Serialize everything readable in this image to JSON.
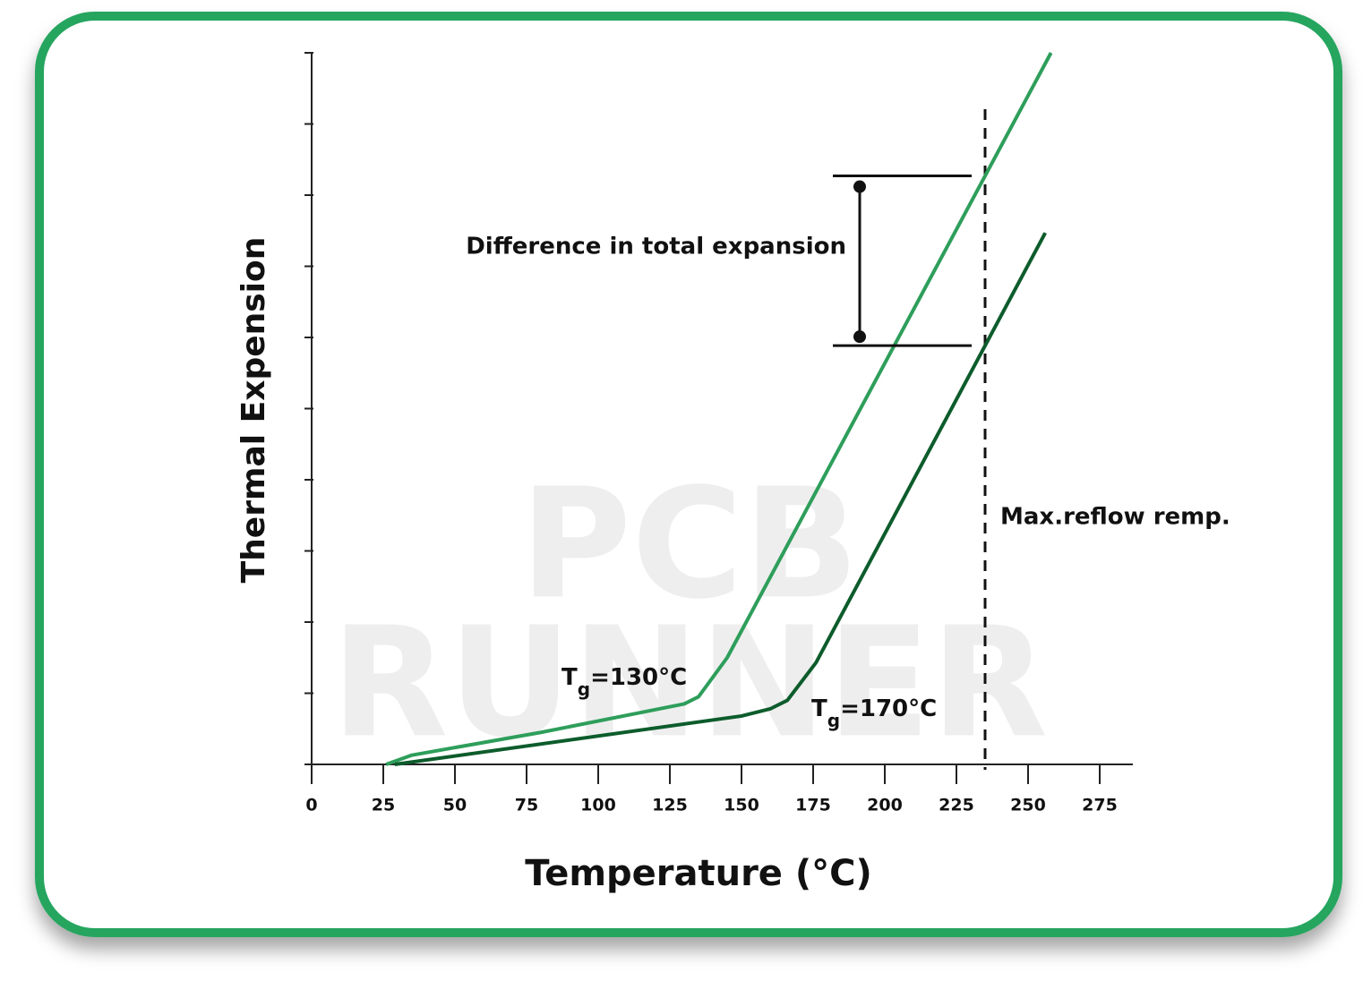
{
  "chart_data": {
    "type": "line",
    "watermark": [
      "PCB",
      "RUNNER"
    ],
    "x_label": "Temperature (°C)",
    "y_label": "Thermal Expension",
    "xlim": [
      0,
      287
    ],
    "xticks": [
      0,
      25,
      50,
      75,
      100,
      125,
      150,
      175,
      200,
      225,
      250,
      275
    ],
    "ylim": [
      0,
      10
    ],
    "yticks": [
      0,
      1,
      2,
      3,
      4,
      5,
      6,
      7,
      8,
      9,
      10
    ],
    "series": [
      {
        "color": "#2e9e5b",
        "x": [
          26,
          35,
          80,
          130,
          135,
          145,
          258
        ],
        "values": [
          0,
          0.13,
          0.45,
          0.85,
          0.95,
          1.5,
          10
        ]
      },
      {
        "color": "#0d5c2c",
        "x": [
          29,
          150,
          160,
          166,
          176,
          256
        ],
        "values": [
          0,
          0.68,
          0.78,
          0.9,
          1.43,
          7.47
        ]
      }
    ],
    "reflow_temp": 235,
    "annotations": {
      "reflow": "Max.reflow remp.",
      "difference": "Difference in total expansion",
      "tg": [
        {
          "main": "T",
          "sub": "g",
          "rest": "=130°C"
        },
        {
          "main": "T",
          "sub": "g",
          "rest": "=170°C"
        }
      ]
    }
  }
}
